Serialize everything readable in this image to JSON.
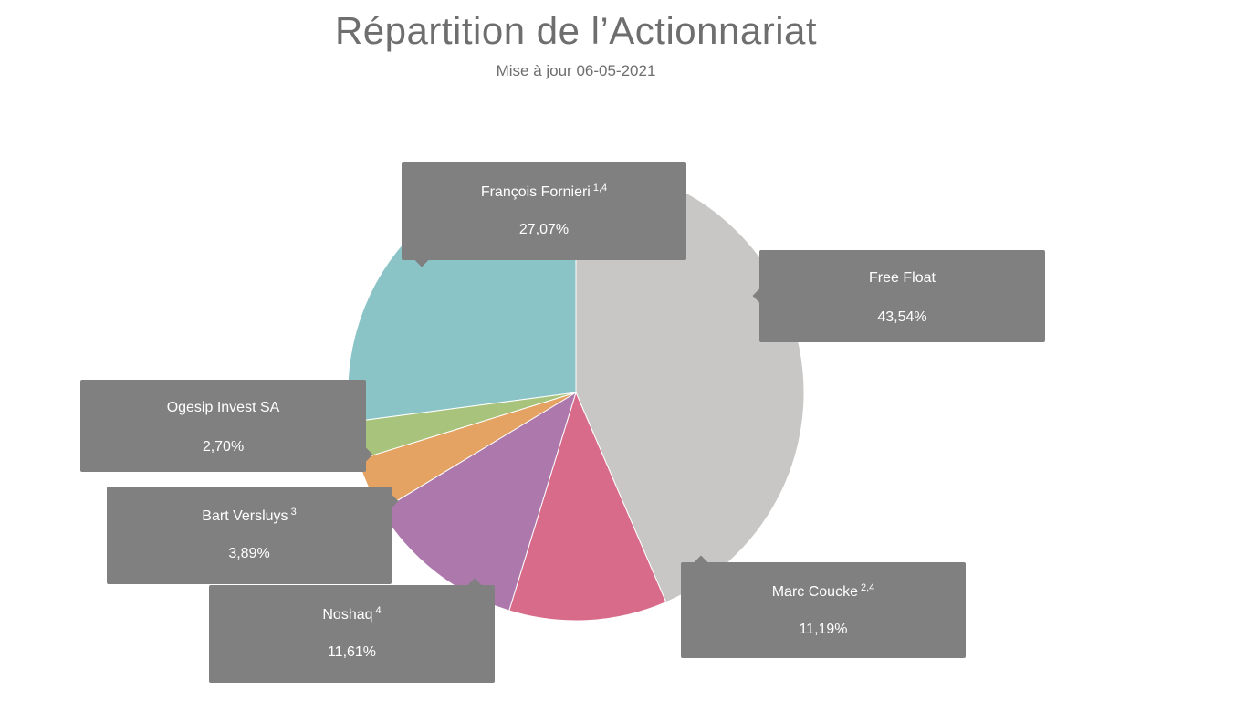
{
  "chart_data": {
    "type": "pie",
    "title": "Répartition de l’Actionnariat",
    "subtitle": "Mise à jour 06-05-2021",
    "slices": [
      {
        "label": "Free Float",
        "sup": "",
        "value": 43.54,
        "display": "43,54%",
        "color": "#c8c7c6"
      },
      {
        "label": "Marc Coucke",
        "sup": "2,4",
        "value": 11.19,
        "display": "11,19%",
        "color": "#d86b8a"
      },
      {
        "label": "Noshaq",
        "sup": "4",
        "value": 11.61,
        "display": "11,61%",
        "color": "#ad79ac"
      },
      {
        "label": "Bart Versluys",
        "sup": "3",
        "value": 3.89,
        "display": "3,89%",
        "color": "#e4a363"
      },
      {
        "label": "Ogesip Invest SA",
        "sup": "",
        "value": 2.7,
        "display": "2,70%",
        "color": "#a8c47c"
      },
      {
        "label": "François Fornieri",
        "sup": "1,4",
        "value": 27.07,
        "display": "27,07%",
        "color": "#8ac4c7"
      }
    ],
    "start_angle_deg": 0,
    "direction": "clockwise"
  }
}
